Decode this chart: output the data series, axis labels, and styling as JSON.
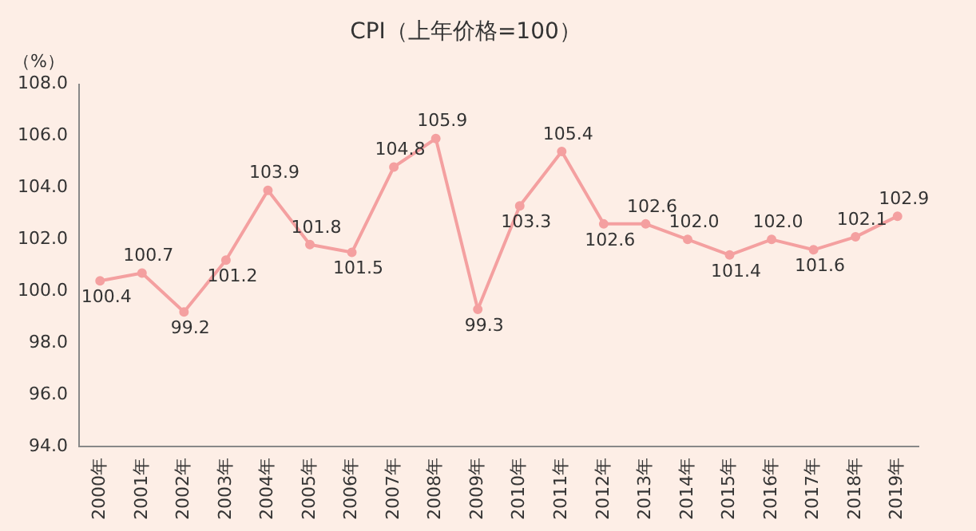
{
  "chart_data": {
    "type": "line",
    "title": "CPI（上年价格=100）",
    "ylabel": "（%）",
    "categories": [
      "2000年",
      "2001年",
      "2002年",
      "2003年",
      "2004年",
      "2005年",
      "2006年",
      "2007年",
      "2008年",
      "2009年",
      "2010年",
      "2011年",
      "2012年",
      "2013年",
      "2014年",
      "2015年",
      "2016年",
      "2017年",
      "2018年",
      "2019年"
    ],
    "series": [
      {
        "color": "#f4a0a0",
        "values": [
          100.4,
          100.7,
          99.2,
          101.2,
          103.9,
          101.8,
          101.5,
          104.8,
          105.9,
          99.3,
          103.3,
          105.4,
          102.6,
          102.6,
          102.0,
          101.4,
          102.0,
          101.6,
          102.1,
          102.9
        ],
        "value_labels": [
          "100.4",
          "100.7",
          "99.2",
          "101.2",
          "103.9",
          "101.8",
          "101.5",
          "104.8",
          "105.9",
          "99.3",
          "103.3",
          "105.4",
          "102.6",
          "102.6",
          "102.0",
          "101.4",
          "102.0",
          "101.6",
          "102.1",
          "102.9"
        ]
      }
    ],
    "ylim": [
      94,
      108
    ],
    "yticks": [
      {
        "value": 94,
        "label": "94.0"
      },
      {
        "value": 96,
        "label": "96.0"
      },
      {
        "value": 98,
        "label": "98.0"
      },
      {
        "value": 100,
        "label": "100.0"
      },
      {
        "value": 102,
        "label": "102.0"
      },
      {
        "value": 104,
        "label": "104.0"
      },
      {
        "value": 106,
        "label": "106.0"
      },
      {
        "value": 108,
        "label": "108.0"
      }
    ],
    "grid": false,
    "legend": false,
    "marker": "circle",
    "line_style": "solid",
    "data_labels": true
  }
}
